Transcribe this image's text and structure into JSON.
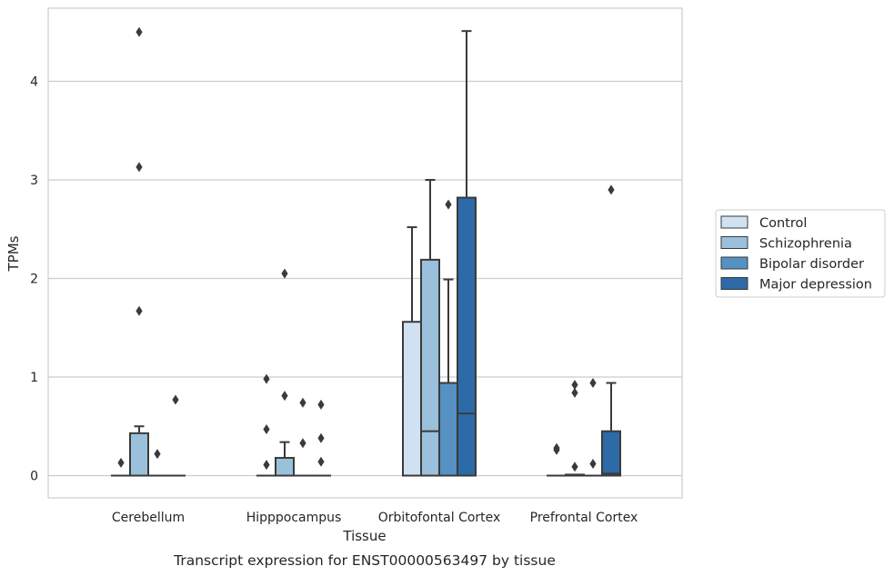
{
  "chart_data": {
    "type": "box",
    "caption": "Transcript expression for ENST00000563497 by tissue",
    "xlabel": "Tissue",
    "ylabel": "TPMs",
    "ylim": [
      -0.22,
      4.75
    ],
    "yticks": [
      0,
      1,
      2,
      3,
      4
    ],
    "grid": "horizontal",
    "legend_position": "right",
    "categories": [
      "Cerebellum",
      "Hipppocampus",
      "Orbitofontal Cortex",
      "Prefrontal Cortex"
    ],
    "series": [
      {
        "name": "Control",
        "color": "#d0e1f2",
        "boxes": [
          {
            "q1": 0,
            "median": 0,
            "q3": 0,
            "whislo": 0,
            "whishi": 0,
            "fliers": [
              0.13
            ]
          },
          {
            "q1": 0,
            "median": 0,
            "q3": 0,
            "whislo": 0,
            "whishi": 0,
            "fliers": [
              0.11,
              0.47,
              0.98
            ]
          },
          {
            "q1": 0,
            "median": 0,
            "q3": 1.56,
            "whislo": 0,
            "whishi": 2.52,
            "fliers": []
          },
          {
            "q1": 0,
            "median": 0,
            "q3": 0,
            "whislo": 0,
            "whishi": 0,
            "fliers": [
              0.26,
              0.28
            ]
          }
        ]
      },
      {
        "name": "Schizophrenia",
        "color": "#9ac0dc",
        "boxes": [
          {
            "q1": 0,
            "median": 0,
            "q3": 0.43,
            "whislo": 0,
            "whishi": 0.5,
            "fliers": [
              1.67,
              3.13,
              4.5
            ]
          },
          {
            "q1": 0,
            "median": 0,
            "q3": 0.18,
            "whislo": 0,
            "whishi": 0.34,
            "fliers": [
              0.81,
              2.05
            ]
          },
          {
            "q1": 0,
            "median": 0.45,
            "q3": 2.19,
            "whislo": 0,
            "whishi": 3.0,
            "fliers": []
          },
          {
            "q1": 0,
            "median": 0,
            "q3": 0.01,
            "whislo": 0,
            "whishi": 0.01,
            "fliers": [
              0.09,
              0.84,
              0.92
            ]
          }
        ]
      },
      {
        "name": "Bipolar disorder",
        "color": "#5591c2",
        "boxes": [
          {
            "q1": 0,
            "median": 0,
            "q3": 0,
            "whislo": 0,
            "whishi": 0,
            "fliers": [
              0.22
            ]
          },
          {
            "q1": 0,
            "median": 0,
            "q3": 0,
            "whislo": 0,
            "whishi": 0,
            "fliers": [
              0.33,
              0.74
            ]
          },
          {
            "q1": 0,
            "median": 0,
            "q3": 0.94,
            "whislo": 0,
            "whishi": 1.99,
            "fliers": [
              2.75
            ]
          },
          {
            "q1": 0,
            "median": 0,
            "q3": 0,
            "whislo": 0,
            "whishi": 0,
            "fliers": [
              0.12,
              0.94
            ]
          }
        ]
      },
      {
        "name": "Major depression",
        "color": "#2c6aa8",
        "boxes": [
          {
            "q1": 0,
            "median": 0,
            "q3": 0,
            "whislo": 0,
            "whishi": 0,
            "fliers": [
              0.77
            ]
          },
          {
            "q1": 0,
            "median": 0,
            "q3": 0,
            "whislo": 0,
            "whishi": 0,
            "fliers": [
              0.14,
              0.38,
              0.72
            ]
          },
          {
            "q1": 0,
            "median": 0.63,
            "q3": 2.82,
            "whislo": 0,
            "whishi": 4.51,
            "fliers": []
          },
          {
            "q1": 0,
            "median": 0.02,
            "q3": 0.45,
            "whislo": 0,
            "whishi": 0.94,
            "fliers": [
              2.9
            ]
          }
        ]
      }
    ]
  }
}
